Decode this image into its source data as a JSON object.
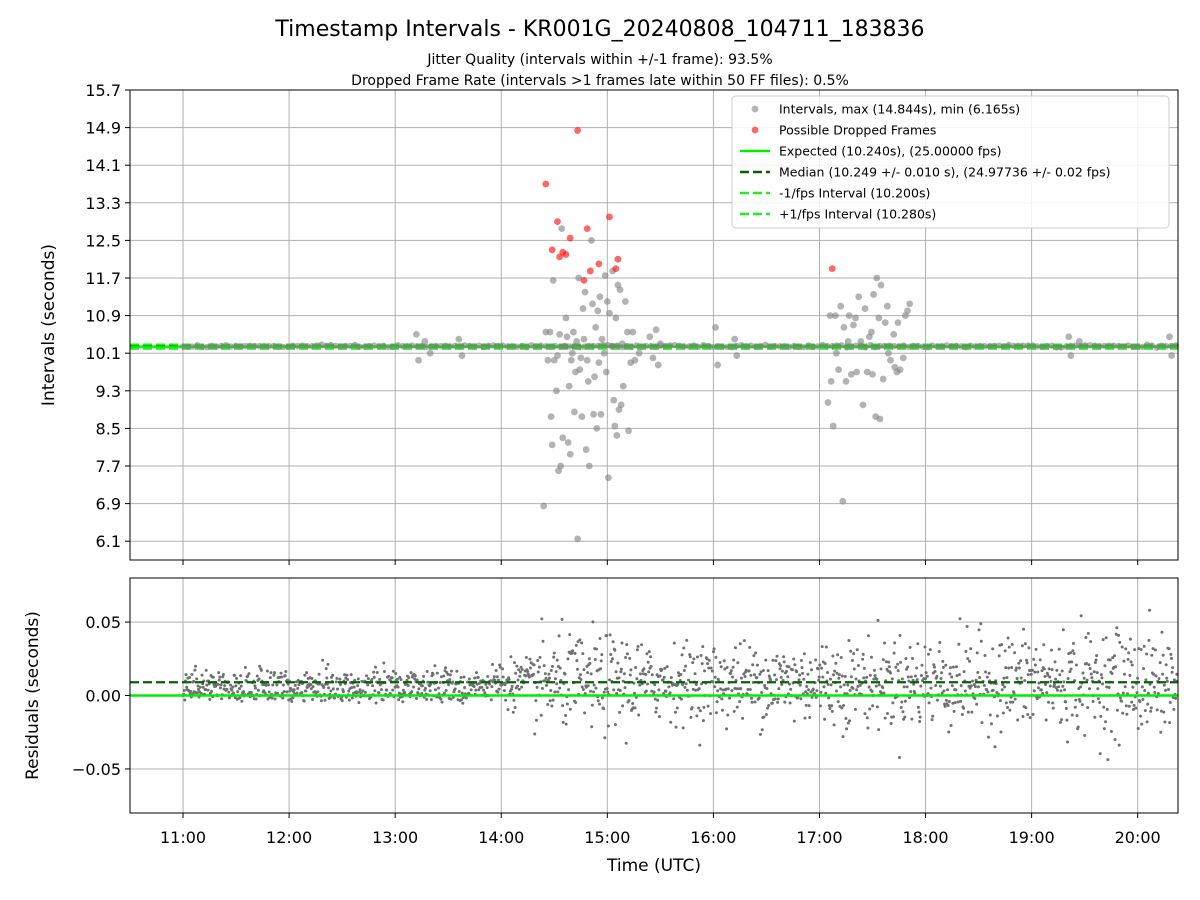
{
  "figure": {
    "title": "Timestamp Intervals - KR001G_20240808_104711_183836",
    "subtitle_1": "Jitter Quality (intervals within +/-1 frame): 93.5%",
    "subtitle_2": "Dropped Frame Rate (intervals >1 frames late within 50 FF files): 0.5%",
    "colors": {
      "intervals": "#808080",
      "dropped": "#ff0000",
      "expected": "#00ee00",
      "median": "#006400",
      "fps_bounds": "#22ee22",
      "residuals": "#707070"
    }
  },
  "chart_data": [
    {
      "type": "scatter",
      "ylabel": "Intervals (seconds)",
      "xlabel": "",
      "ylim": [
        5.7,
        15.7
      ],
      "yticks": [
        "6.1",
        "6.9",
        "7.7",
        "8.5",
        "9.3",
        "10.1",
        "10.9",
        "11.7",
        "12.5",
        "13.3",
        "14.1",
        "14.9",
        "15.7"
      ],
      "grid": true,
      "legend_position": "top-right",
      "legend": [
        {
          "label": "Intervals, max (14.844s), min (6.165s)",
          "style": "marker-grey"
        },
        {
          "label": "Possible Dropped Frames",
          "style": "marker-red"
        },
        {
          "label": "Expected (10.240s), (25.00000 fps)",
          "style": "line-solid-green"
        },
        {
          "label": "Median (10.249 +/- 0.010 s), (24.97736 +/- 0.02 fps)",
          "style": "line-dashed-darkgreen"
        },
        {
          "label": "-1/fps Interval (10.200s)",
          "style": "line-dashed-green"
        },
        {
          "label": "+1/fps Interval (10.280s)",
          "style": "line-dashed-green"
        }
      ],
      "lines": {
        "expected": 10.24,
        "median": 10.249,
        "lower": 10.2,
        "upper": 10.28
      },
      "dropped_frames": [
        [
          14.42,
          13.7
        ],
        [
          14.48,
          12.3
        ],
        [
          14.53,
          12.9
        ],
        [
          14.55,
          12.15
        ],
        [
          14.58,
          12.25
        ],
        [
          14.61,
          12.2
        ],
        [
          14.65,
          12.55
        ],
        [
          14.72,
          14.84
        ],
        [
          14.78,
          11.65
        ],
        [
          14.81,
          12.75
        ],
        [
          14.84,
          11.85
        ],
        [
          14.92,
          12.0
        ],
        [
          15.02,
          13.0
        ],
        [
          15.08,
          11.9
        ],
        [
          15.1,
          12.1
        ],
        [
          17.12,
          11.9
        ]
      ],
      "intervals": [
        [
          13.2,
          10.5
        ],
        [
          13.22,
          9.95
        ],
        [
          13.28,
          10.35
        ],
        [
          13.33,
          10.1
        ],
        [
          13.6,
          10.4
        ],
        [
          13.63,
          10.05
        ],
        [
          14.4,
          6.85
        ],
        [
          14.42,
          10.55
        ],
        [
          14.44,
          9.95
        ],
        [
          14.46,
          10.55
        ],
        [
          14.47,
          8.75
        ],
        [
          14.48,
          8.15
        ],
        [
          14.49,
          11.65
        ],
        [
          14.5,
          9.95
        ],
        [
          14.52,
          9.3
        ],
        [
          14.53,
          10.05
        ],
        [
          14.54,
          7.6
        ],
        [
          14.55,
          10.5
        ],
        [
          14.56,
          7.7
        ],
        [
          14.57,
          12.75
        ],
        [
          14.58,
          8.3
        ],
        [
          14.6,
          10.25
        ],
        [
          14.61,
          10.85
        ],
        [
          14.62,
          10.45
        ],
        [
          14.63,
          8.2
        ],
        [
          14.64,
          9.4
        ],
        [
          14.65,
          7.95
        ],
        [
          14.66,
          9.95
        ],
        [
          14.67,
          10.1
        ],
        [
          14.68,
          10.55
        ],
        [
          14.69,
          8.85
        ],
        [
          14.7,
          9.7
        ],
        [
          14.71,
          10.35
        ],
        [
          14.72,
          6.15
        ],
        [
          14.73,
          11.7
        ],
        [
          14.74,
          9.75
        ],
        [
          14.75,
          10.0
        ],
        [
          14.76,
          8.75
        ],
        [
          14.77,
          11.05
        ],
        [
          14.78,
          10.4
        ],
        [
          14.79,
          11.4
        ],
        [
          14.8,
          8.05
        ],
        [
          14.81,
          9.95
        ],
        [
          14.82,
          9.5
        ],
        [
          14.83,
          7.7
        ],
        [
          14.85,
          12.5
        ],
        [
          14.86,
          11.15
        ],
        [
          14.87,
          8.8
        ],
        [
          14.88,
          9.6
        ],
        [
          14.89,
          10.65
        ],
        [
          14.9,
          8.5
        ],
        [
          14.91,
          11.0
        ],
        [
          14.92,
          9.9
        ],
        [
          14.93,
          11.3
        ],
        [
          14.94,
          8.8
        ],
        [
          14.95,
          10.4
        ],
        [
          14.97,
          10.1
        ],
        [
          14.98,
          11.75
        ],
        [
          14.99,
          9.7
        ],
        [
          15.0,
          11.2
        ],
        [
          15.01,
          7.45
        ],
        [
          15.02,
          10.95
        ],
        [
          15.04,
          10.25
        ],
        [
          15.05,
          11.85
        ],
        [
          15.06,
          9.1
        ],
        [
          15.07,
          8.55
        ],
        [
          15.08,
          10.85
        ],
        [
          15.09,
          8.35
        ],
        [
          15.1,
          11.55
        ],
        [
          15.11,
          8.9
        ],
        [
          15.12,
          11.45
        ],
        [
          15.13,
          9.0
        ],
        [
          15.14,
          10.3
        ],
        [
          15.15,
          9.4
        ],
        [
          15.17,
          11.2
        ],
        [
          15.19,
          10.55
        ],
        [
          15.2,
          8.45
        ],
        [
          15.22,
          9.9
        ],
        [
          15.24,
          10.55
        ],
        [
          15.26,
          9.95
        ],
        [
          15.3,
          10.1
        ],
        [
          15.4,
          10.45
        ],
        [
          15.43,
          10.0
        ],
        [
          15.46,
          10.6
        ],
        [
          15.48,
          9.85
        ],
        [
          15.5,
          10.3
        ],
        [
          16.02,
          10.65
        ],
        [
          16.04,
          9.85
        ],
        [
          16.2,
          10.4
        ],
        [
          16.22,
          10.05
        ],
        [
          17.08,
          9.05
        ],
        [
          17.1,
          10.9
        ],
        [
          17.11,
          9.5
        ],
        [
          17.13,
          8.55
        ],
        [
          17.15,
          10.9
        ],
        [
          17.16,
          10.1
        ],
        [
          17.18,
          9.75
        ],
        [
          17.2,
          11.1
        ],
        [
          17.22,
          6.95
        ],
        [
          17.23,
          10.65
        ],
        [
          17.25,
          9.5
        ],
        [
          17.27,
          10.35
        ],
        [
          17.28,
          10.9
        ],
        [
          17.3,
          9.65
        ],
        [
          17.32,
          10.7
        ],
        [
          17.34,
          10.85
        ],
        [
          17.35,
          9.7
        ],
        [
          17.37,
          11.3
        ],
        [
          17.39,
          10.35
        ],
        [
          17.41,
          9.0
        ],
        [
          17.43,
          11.05
        ],
        [
          17.45,
          9.7
        ],
        [
          17.47,
          10.45
        ],
        [
          17.49,
          10.55
        ],
        [
          17.5,
          9.65
        ],
        [
          17.51,
          11.35
        ],
        [
          17.53,
          8.75
        ],
        [
          17.54,
          11.7
        ],
        [
          17.56,
          10.85
        ],
        [
          17.57,
          8.7
        ],
        [
          17.58,
          11.55
        ],
        [
          17.6,
          9.55
        ],
        [
          17.62,
          10.75
        ],
        [
          17.64,
          11.1
        ],
        [
          17.65,
          10.1
        ],
        [
          17.67,
          9.95
        ],
        [
          17.7,
          10.5
        ],
        [
          17.71,
          9.8
        ],
        [
          17.73,
          9.7
        ],
        [
          17.74,
          10.75
        ],
        [
          17.76,
          9.75
        ],
        [
          17.79,
          10.0
        ],
        [
          17.81,
          10.9
        ],
        [
          17.83,
          11.0
        ],
        [
          17.85,
          11.15
        ],
        [
          19.35,
          10.45
        ],
        [
          19.37,
          10.05
        ],
        [
          19.45,
          10.35
        ],
        [
          20.3,
          10.45
        ],
        [
          20.32,
          10.05
        ]
      ]
    },
    {
      "type": "scatter",
      "ylabel": "Residuals (seconds)",
      "xlabel": "Time (UTC)",
      "ylim": [
        -0.08,
        0.08
      ],
      "yticks": [
        "−0.05",
        "0.00",
        "0.05"
      ],
      "xlim": [
        10.5,
        20.38
      ],
      "xticks": [
        "11:00",
        "12:00",
        "13:00",
        "14:00",
        "15:00",
        "16:00",
        "17:00",
        "18:00",
        "19:00",
        "20:00"
      ],
      "grid": true,
      "lines": {
        "expected": 0.0,
        "median": 0.009
      }
    }
  ]
}
